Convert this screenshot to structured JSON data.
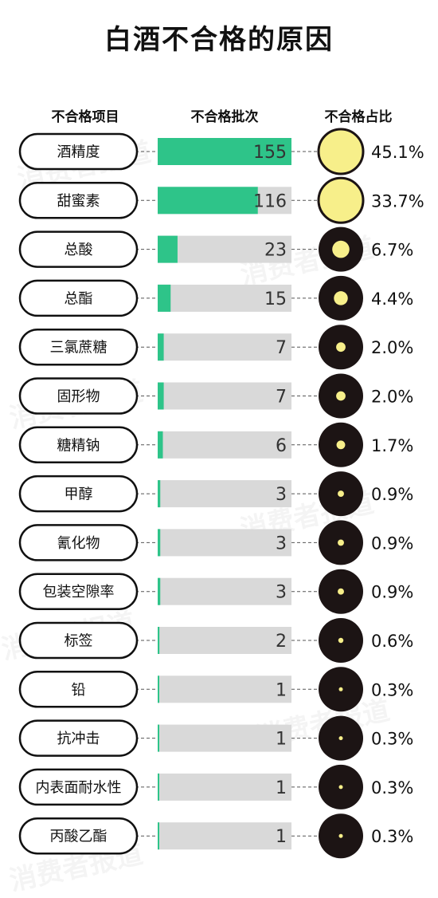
{
  "title": "白酒不合格的原因",
  "headers": {
    "item": "不合格项目",
    "batches": "不合格批次",
    "share": "不合格占比"
  },
  "watermark": "消费者报道",
  "colors": {
    "bar": "#2ec489",
    "track": "#d9d9d9",
    "dot": "#f7ef8a",
    "circle_dark": "#1c1414"
  },
  "chart_data": {
    "type": "bar",
    "title": "白酒不合格的原因",
    "xlabel": "不合格批次",
    "ylabel": "不合格项目",
    "xlim": [
      0,
      155
    ],
    "categories": [
      "酒精度",
      "甜蜜素",
      "总酸",
      "总酯",
      "三氯蔗糖",
      "固形物",
      "糖精钠",
      "甲醇",
      "氰化物",
      "包装空隙率",
      "标签",
      "铅",
      "抗冲击",
      "内表面耐水性",
      "丙酸乙酯"
    ],
    "values": [
      155,
      116,
      23,
      15,
      7,
      7,
      6,
      3,
      3,
      3,
      2,
      1,
      1,
      1,
      1
    ],
    "shares": [
      "45.1%",
      "33.7%",
      "6.7%",
      "4.4%",
      "2.0%",
      "2.0%",
      "1.7%",
      "0.9%",
      "0.9%",
      "0.9%",
      "0.6%",
      "0.3%",
      "0.3%",
      "0.3%",
      "0.3%"
    ],
    "share_values": [
      45.1,
      33.7,
      6.7,
      4.4,
      2.0,
      2.0,
      1.7,
      0.9,
      0.9,
      0.9,
      0.6,
      0.3,
      0.3,
      0.3,
      0.3
    ]
  }
}
